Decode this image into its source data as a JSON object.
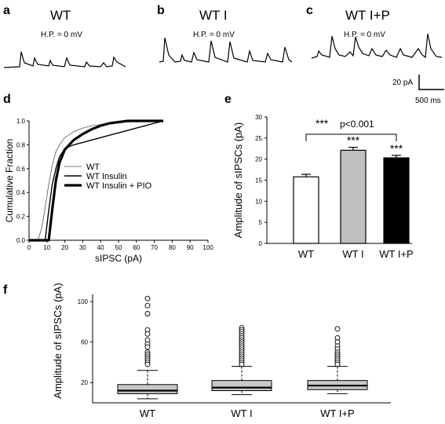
{
  "panel_letters": {
    "a": "a",
    "b": "b",
    "c": "c",
    "d": "d",
    "e": "e",
    "f": "f"
  },
  "traces": {
    "titles": [
      "WT",
      "WT I",
      "WT I+P"
    ],
    "holding_potential": "H.P. = 0 mV",
    "scalebar": {
      "amplitude": "20 pA",
      "time": "500 ms"
    }
  },
  "chart_data": [
    {
      "panel": "d",
      "type": "line",
      "xlabel": "sIPSC (pA)",
      "ylabel": "Cumulative Fraction",
      "xlim": [
        0,
        100
      ],
      "ylim": [
        0,
        1
      ],
      "xticks": [
        "0",
        "10",
        "20",
        "30",
        "40",
        "50",
        "60",
        "70",
        "80",
        "90",
        "100"
      ],
      "yticks": [
        "0.0",
        "0.2",
        "0.4",
        "0.6",
        "0.8",
        "1.0"
      ],
      "legend_position": "center-left",
      "series": [
        {
          "name": "WT",
          "style": "thin",
          "x": [
            5,
            7,
            9,
            11,
            13,
            15,
            17,
            20,
            25,
            30,
            35,
            40,
            45,
            50,
            55,
            60,
            65,
            70,
            75
          ],
          "y": [
            0,
            0.1,
            0.27,
            0.47,
            0.63,
            0.74,
            0.8,
            0.86,
            0.91,
            0.94,
            0.96,
            0.97,
            0.98,
            0.99,
            0.995,
            1,
            1,
            1,
            1
          ]
        },
        {
          "name": "WT Insulin",
          "style": "medium",
          "x": [
            9,
            11,
            13,
            15,
            17,
            20,
            25,
            30,
            35,
            40,
            45,
            50,
            55,
            60,
            65,
            70,
            75
          ],
          "y": [
            0,
            0.25,
            0.47,
            0.6,
            0.7,
            0.77,
            0.8,
            0.82,
            0.84,
            0.86,
            0.88,
            0.9,
            0.92,
            0.94,
            0.96,
            0.98,
            1
          ]
        },
        {
          "name": "WT Insulin + PIO",
          "style": "thick",
          "x": [
            11,
            13,
            15,
            17,
            20,
            25,
            30,
            35,
            40,
            45,
            50,
            55,
            60,
            65,
            70,
            75
          ],
          "y": [
            0,
            0.26,
            0.5,
            0.65,
            0.76,
            0.84,
            0.89,
            0.93,
            0.96,
            0.98,
            0.99,
            1,
            1,
            1,
            1,
            1
          ]
        }
      ]
    },
    {
      "panel": "e",
      "type": "bar",
      "ylabel": "Amplitude of sIPSCs (pA)",
      "ylim": [
        0,
        30
      ],
      "yticks": [
        "0",
        "5",
        "10",
        "15",
        "20",
        "25",
        "30"
      ],
      "categories": [
        "WT",
        "WT I",
        "WT I+P"
      ],
      "values": [
        15.8,
        22.1,
        20.3
      ],
      "errors": [
        0.6,
        0.7,
        0.6
      ],
      "colors": [
        "#ffffff",
        "#bfbfbf",
        "#000000"
      ],
      "significance": [
        "",
        "***",
        "***"
      ],
      "bracket_label": {
        "stars": "***",
        "text": "p<0.001"
      }
    },
    {
      "panel": "f",
      "type": "box",
      "ylabel": "Amplitude of sIPSCs (pA)",
      "ylim": [
        0,
        107
      ],
      "yticks": [
        "20",
        "60",
        "100"
      ],
      "categories": [
        "WT",
        "WT I",
        "WT I+P"
      ],
      "boxes": [
        {
          "whisker_low": 4,
          "q1": 9,
          "median": 12,
          "q3": 18,
          "whisker_high": 32,
          "outliers": [
            103,
            96,
            88,
            72,
            68,
            62,
            58,
            55,
            50,
            48,
            46,
            44,
            42,
            40,
            38
          ]
        },
        {
          "whisker_low": 8,
          "q1": 12,
          "median": 15,
          "q3": 22,
          "whisker_high": 36,
          "outliers": [
            74,
            72,
            70,
            68,
            66,
            64,
            62,
            60,
            58,
            56,
            54,
            52,
            50,
            48,
            46,
            44,
            42,
            40,
            38
          ]
        },
        {
          "whisker_low": 9,
          "q1": 13,
          "median": 17,
          "q3": 22,
          "whisker_high": 36,
          "outliers": [
            73,
            64,
            60,
            56,
            53,
            50,
            48,
            46,
            44,
            42,
            40,
            38
          ]
        }
      ]
    }
  ]
}
